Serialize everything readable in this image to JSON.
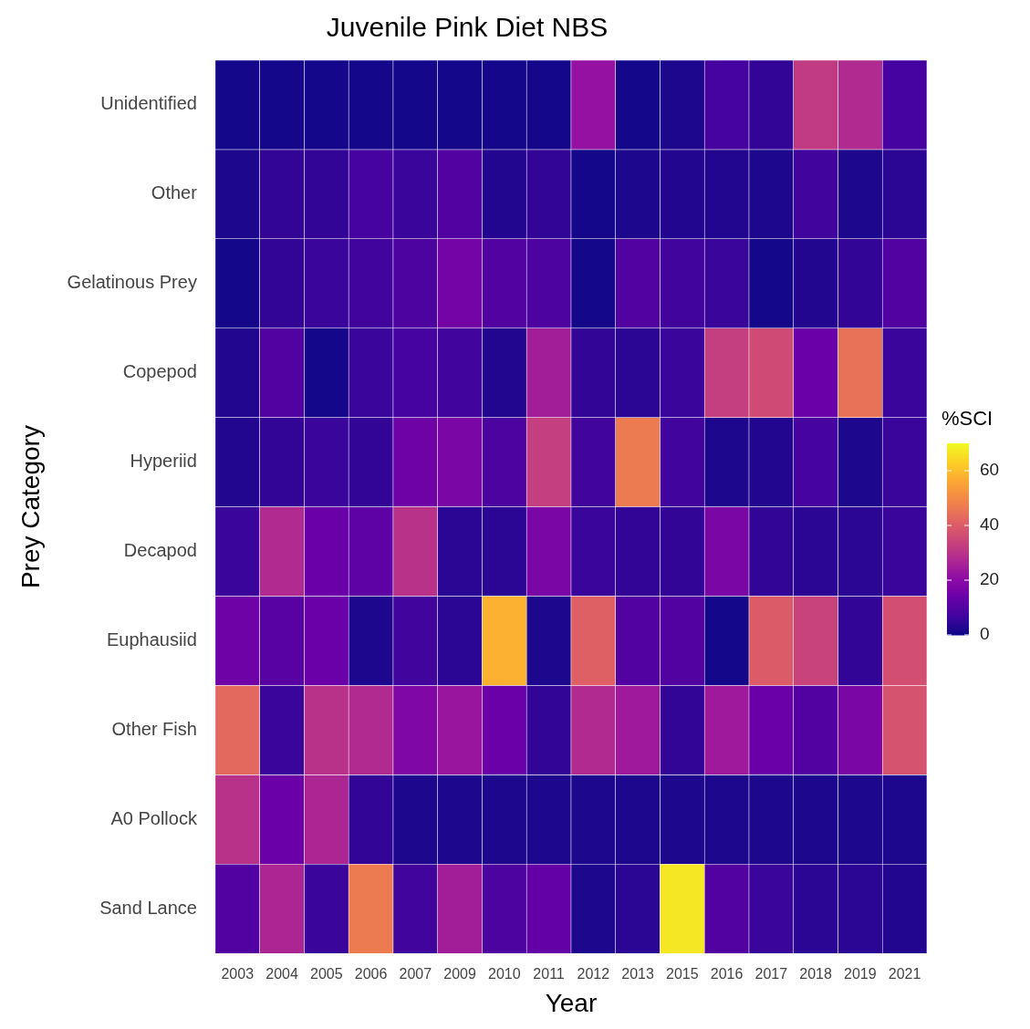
{
  "chart_data": {
    "type": "heatmap",
    "title": "Juvenile Pink Diet NBS",
    "xlabel": "Year",
    "ylabel": "Prey Category",
    "clabel": "%SCI",
    "categories": [
      "2003",
      "2004",
      "2005",
      "2006",
      "2007",
      "2009",
      "2010",
      "2011",
      "2012",
      "2013",
      "2015",
      "2016",
      "2017",
      "2018",
      "2019",
      "2021"
    ],
    "y_categories": [
      "Unidentified",
      "Other",
      "Gelatinous Prey",
      "Copepod",
      "Hyperiid",
      "Decapod",
      "Euphausiid",
      "Other Fish",
      "A0 Pollock",
      "Sand Lance"
    ],
    "cells": [
      [
        1,
        1,
        1,
        1,
        1,
        1,
        1,
        1,
        22,
        1,
        2,
        8,
        5,
        32,
        28,
        8
      ],
      [
        2,
        5,
        5,
        8,
        6,
        10,
        3,
        5,
        1,
        2,
        3,
        3,
        2,
        7,
        2,
        4
      ],
      [
        1,
        5,
        6,
        7,
        9,
        16,
        10,
        9,
        1,
        10,
        7,
        6,
        1,
        3,
        5,
        10
      ],
      [
        3,
        10,
        1,
        6,
        8,
        7,
        3,
        25,
        5,
        4,
        6,
        33,
        36,
        14,
        45,
        6
      ],
      [
        3,
        5,
        6,
        5,
        15,
        17,
        9,
        33,
        7,
        47,
        7,
        2,
        3,
        8,
        2,
        6
      ],
      [
        6,
        28,
        14,
        12,
        30,
        4,
        4,
        17,
        6,
        5,
        5,
        17,
        5,
        4,
        4,
        6
      ],
      [
        15,
        11,
        14,
        2,
        7,
        4,
        58,
        2,
        41,
        10,
        10,
        1,
        40,
        34,
        5,
        37
      ],
      [
        43,
        6,
        30,
        28,
        18,
        23,
        14,
        5,
        28,
        24,
        5,
        24,
        14,
        10,
        17,
        38
      ],
      [
        30,
        14,
        27,
        5,
        2,
        2,
        2,
        2,
        2,
        2,
        2,
        2,
        2,
        2,
        2,
        2
      ],
      [
        10,
        27,
        6,
        47,
        7,
        25,
        9,
        13,
        2,
        4,
        67,
        10,
        6,
        4,
        4,
        3
      ]
    ],
    "clim": [
      0,
      70
    ],
    "cticks": [
      0,
      20,
      40,
      60
    ]
  }
}
